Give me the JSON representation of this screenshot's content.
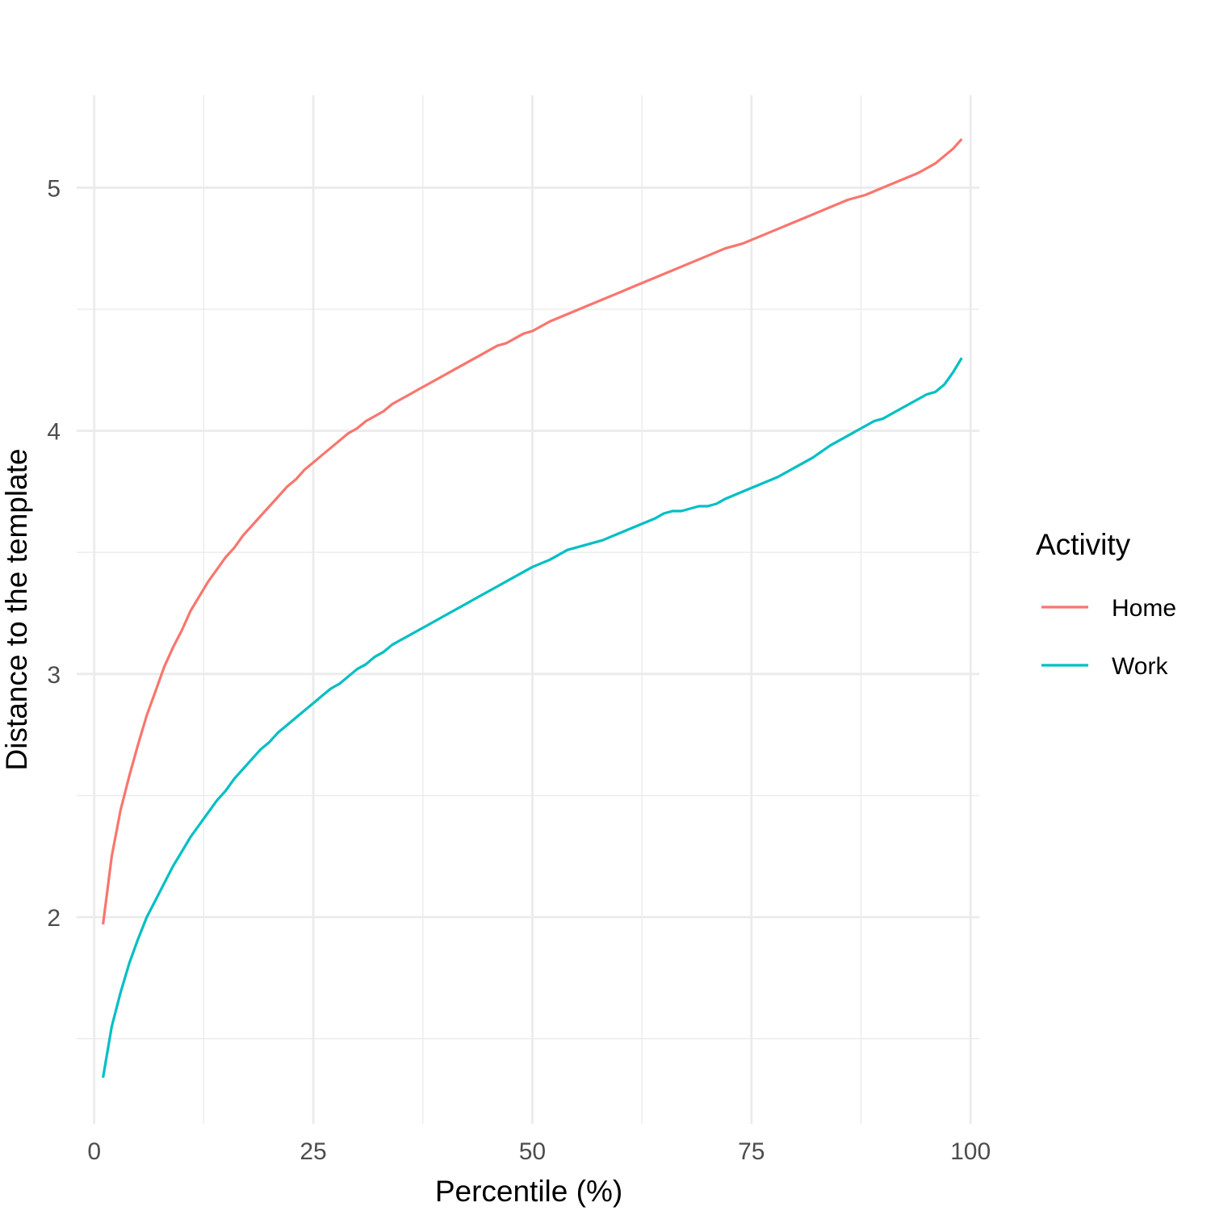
{
  "chart_data": {
    "type": "line",
    "title": "",
    "xlabel": "Percentile (%)",
    "ylabel": "Distance to the template",
    "xlim": [
      -2,
      101
    ],
    "ylim": [
      1.15,
      5.38
    ],
    "x_ticks": [
      0,
      25,
      50,
      75,
      100
    ],
    "x_tick_labels": [
      "0",
      "25",
      "50",
      "75",
      "100"
    ],
    "x_minor_ticks": [
      12.5,
      37.5,
      62.5,
      87.5
    ],
    "y_ticks": [
      2,
      3,
      4,
      5
    ],
    "y_tick_labels": [
      "2",
      "3",
      "4",
      "5"
    ],
    "y_minor_ticks": [
      1.5,
      2.5,
      3.5,
      4.5
    ],
    "grid": true,
    "legend": {
      "title": "Activity",
      "position": "right"
    },
    "series": [
      {
        "name": "Home",
        "color": "#F8766D",
        "points": [
          [
            1,
            1.97
          ],
          [
            2,
            2.25
          ],
          [
            3,
            2.44
          ],
          [
            4,
            2.58
          ],
          [
            5,
            2.71
          ],
          [
            6,
            2.83
          ],
          [
            7,
            2.93
          ],
          [
            8,
            3.03
          ],
          [
            9,
            3.11
          ],
          [
            10,
            3.18
          ],
          [
            11,
            3.26
          ],
          [
            12,
            3.32
          ],
          [
            13,
            3.38
          ],
          [
            14,
            3.43
          ],
          [
            15,
            3.48
          ],
          [
            16,
            3.52
          ],
          [
            17,
            3.57
          ],
          [
            18,
            3.61
          ],
          [
            19,
            3.65
          ],
          [
            20,
            3.69
          ],
          [
            21,
            3.73
          ],
          [
            22,
            3.77
          ],
          [
            23,
            3.8
          ],
          [
            24,
            3.84
          ],
          [
            25,
            3.87
          ],
          [
            26,
            3.9
          ],
          [
            27,
            3.93
          ],
          [
            28,
            3.96
          ],
          [
            29,
            3.99
          ],
          [
            30,
            4.01
          ],
          [
            31,
            4.04
          ],
          [
            32,
            4.06
          ],
          [
            33,
            4.08
          ],
          [
            34,
            4.11
          ],
          [
            35,
            4.13
          ],
          [
            36,
            4.15
          ],
          [
            37,
            4.17
          ],
          [
            38,
            4.19
          ],
          [
            39,
            4.21
          ],
          [
            40,
            4.23
          ],
          [
            41,
            4.25
          ],
          [
            42,
            4.27
          ],
          [
            43,
            4.29
          ],
          [
            44,
            4.31
          ],
          [
            45,
            4.33
          ],
          [
            46,
            4.35
          ],
          [
            47,
            4.36
          ],
          [
            48,
            4.38
          ],
          [
            49,
            4.4
          ],
          [
            50,
            4.41
          ],
          [
            52,
            4.45
          ],
          [
            54,
            4.48
          ],
          [
            56,
            4.51
          ],
          [
            58,
            4.54
          ],
          [
            60,
            4.57
          ],
          [
            62,
            4.6
          ],
          [
            64,
            4.63
          ],
          [
            66,
            4.66
          ],
          [
            68,
            4.69
          ],
          [
            70,
            4.72
          ],
          [
            72,
            4.75
          ],
          [
            74,
            4.77
          ],
          [
            76,
            4.8
          ],
          [
            78,
            4.83
          ],
          [
            80,
            4.86
          ],
          [
            82,
            4.89
          ],
          [
            84,
            4.92
          ],
          [
            86,
            4.95
          ],
          [
            88,
            4.97
          ],
          [
            90,
            5.0
          ],
          [
            92,
            5.03
          ],
          [
            94,
            5.06
          ],
          [
            95,
            5.08
          ],
          [
            96,
            5.1
          ],
          [
            97,
            5.13
          ],
          [
            98,
            5.16
          ],
          [
            99,
            5.2
          ]
        ]
      },
      {
        "name": "Work",
        "color": "#00BFC4",
        "points": [
          [
            1,
            1.34
          ],
          [
            2,
            1.55
          ],
          [
            3,
            1.69
          ],
          [
            4,
            1.81
          ],
          [
            5,
            1.91
          ],
          [
            6,
            2.0
          ],
          [
            7,
            2.07
          ],
          [
            8,
            2.14
          ],
          [
            9,
            2.21
          ],
          [
            10,
            2.27
          ],
          [
            11,
            2.33
          ],
          [
            12,
            2.38
          ],
          [
            13,
            2.43
          ],
          [
            14,
            2.48
          ],
          [
            15,
            2.52
          ],
          [
            16,
            2.57
          ],
          [
            17,
            2.61
          ],
          [
            18,
            2.65
          ],
          [
            19,
            2.69
          ],
          [
            20,
            2.72
          ],
          [
            21,
            2.76
          ],
          [
            22,
            2.79
          ],
          [
            23,
            2.82
          ],
          [
            24,
            2.85
          ],
          [
            25,
            2.88
          ],
          [
            26,
            2.91
          ],
          [
            27,
            2.94
          ],
          [
            28,
            2.96
          ],
          [
            29,
            2.99
          ],
          [
            30,
            3.02
          ],
          [
            31,
            3.04
          ],
          [
            32,
            3.07
          ],
          [
            33,
            3.09
          ],
          [
            34,
            3.12
          ],
          [
            35,
            3.14
          ],
          [
            36,
            3.16
          ],
          [
            37,
            3.18
          ],
          [
            38,
            3.2
          ],
          [
            39,
            3.22
          ],
          [
            40,
            3.24
          ],
          [
            42,
            3.28
          ],
          [
            44,
            3.32
          ],
          [
            46,
            3.36
          ],
          [
            48,
            3.4
          ],
          [
            50,
            3.44
          ],
          [
            52,
            3.47
          ],
          [
            54,
            3.51
          ],
          [
            55,
            3.52
          ],
          [
            56,
            3.53
          ],
          [
            58,
            3.55
          ],
          [
            60,
            3.58
          ],
          [
            62,
            3.61
          ],
          [
            64,
            3.64
          ],
          [
            65,
            3.66
          ],
          [
            66,
            3.67
          ],
          [
            67,
            3.67
          ],
          [
            68,
            3.68
          ],
          [
            69,
            3.69
          ],
          [
            70,
            3.69
          ],
          [
            71,
            3.7
          ],
          [
            72,
            3.72
          ],
          [
            74,
            3.75
          ],
          [
            76,
            3.78
          ],
          [
            78,
            3.81
          ],
          [
            80,
            3.85
          ],
          [
            82,
            3.89
          ],
          [
            84,
            3.94
          ],
          [
            86,
            3.98
          ],
          [
            87,
            4.0
          ],
          [
            88,
            4.02
          ],
          [
            89,
            4.04
          ],
          [
            90,
            4.05
          ],
          [
            91,
            4.07
          ],
          [
            92,
            4.09
          ],
          [
            93,
            4.11
          ],
          [
            94,
            4.13
          ],
          [
            95,
            4.15
          ],
          [
            96,
            4.16
          ],
          [
            97,
            4.19
          ],
          [
            98,
            4.24
          ],
          [
            99,
            4.3
          ]
        ]
      }
    ]
  }
}
